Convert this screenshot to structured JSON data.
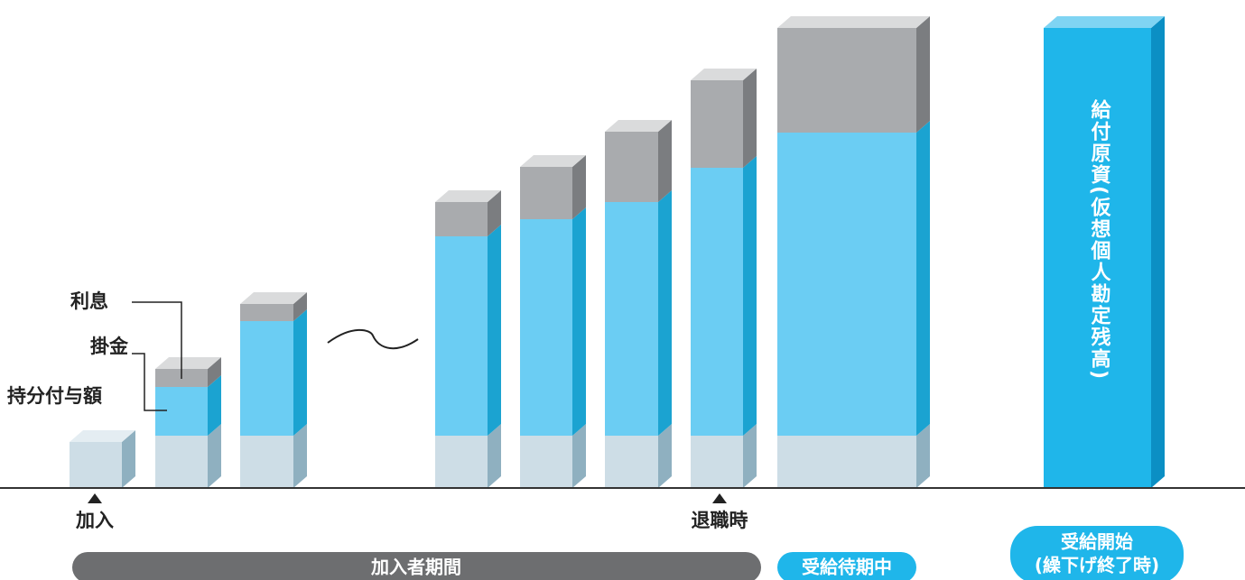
{
  "legend": {
    "interest": "利息",
    "contribution": "掛金",
    "allocation": "持分付与額"
  },
  "markers": {
    "join": "加入",
    "retire": "退職時"
  },
  "bar_label": "給付原資(仮想個人勘定残高)",
  "periods": {
    "member": "加入者期間",
    "waiting": "受給待期中",
    "start_line1": "受給開始",
    "start_line2": "(繰下げ終了時)"
  }
}
